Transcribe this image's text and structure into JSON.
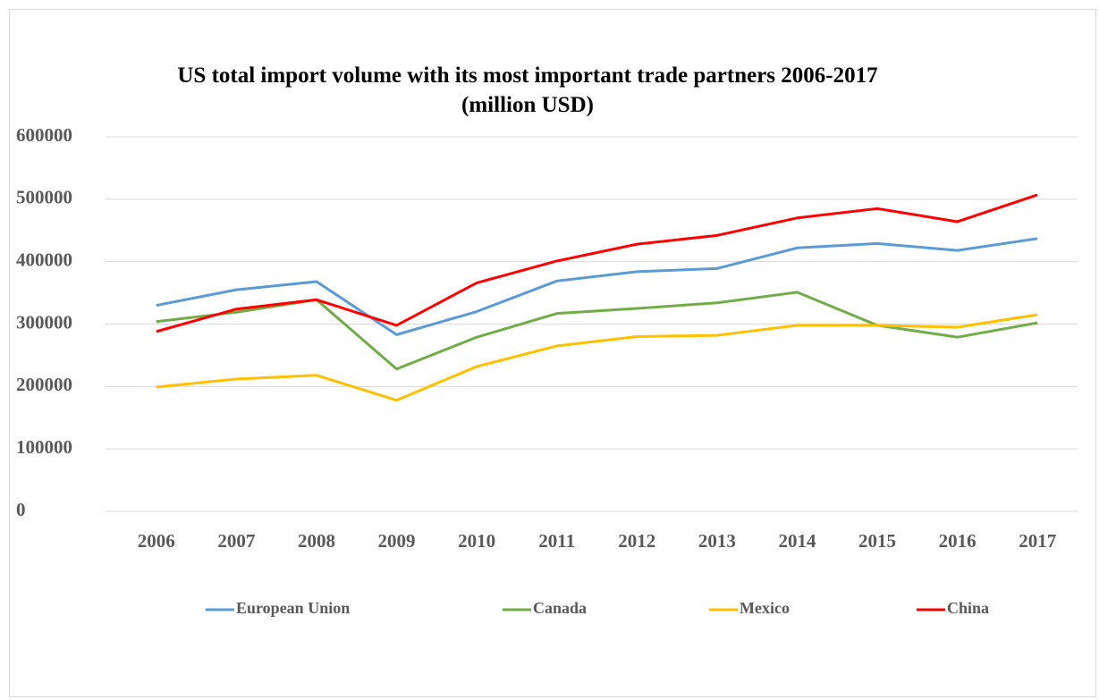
{
  "chart_data": {
    "type": "line",
    "title": "US total import volume with its most important trade partners  2006-2017 (million USD)",
    "categories": [
      "2006",
      "2007",
      "2008",
      "2009",
      "2010",
      "2011",
      "2012",
      "2013",
      "2014",
      "2015",
      "2016",
      "2017"
    ],
    "series": [
      {
        "name": "European Union",
        "color": "#5b9bd5",
        "values": [
          330000,
          355000,
          368000,
          283000,
          320000,
          369000,
          384000,
          389000,
          422000,
          429000,
          418000,
          437000
        ]
      },
      {
        "name": "Canada",
        "color": "#70ad47",
        "values": [
          304000,
          319000,
          339000,
          228000,
          279000,
          317000,
          325000,
          334000,
          351000,
          298000,
          279000,
          302000
        ]
      },
      {
        "name": "Mexico",
        "color": "#ffc000",
        "values": [
          199000,
          212000,
          218000,
          178000,
          232000,
          265000,
          280000,
          282000,
          298000,
          298000,
          295000,
          315000
        ]
      },
      {
        "name": "China",
        "color": "#ff0000",
        "values": [
          288000,
          324000,
          339000,
          298000,
          366000,
          401000,
          428000,
          442000,
          470000,
          485000,
          464000,
          507000
        ]
      }
    ],
    "ylim": [
      0,
      600000
    ],
    "yticks": [
      0,
      100000,
      200000,
      300000,
      400000,
      500000,
      600000
    ],
    "grid": true,
    "legend": "bottom"
  }
}
